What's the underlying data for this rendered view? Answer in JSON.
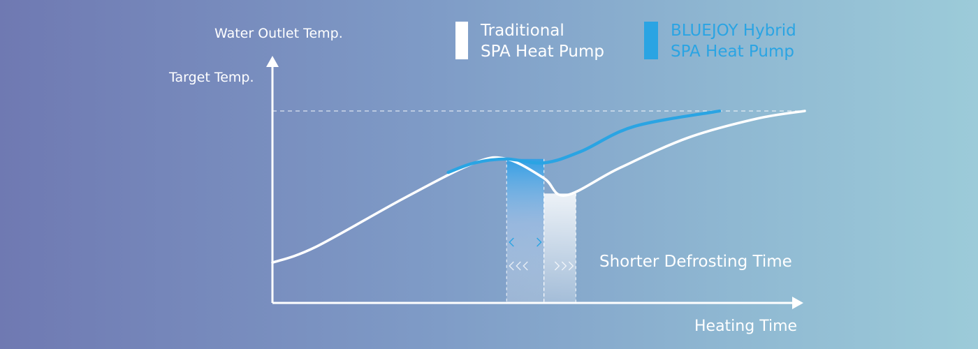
{
  "chart_data": {
    "type": "line",
    "xlabel": "Heating Time",
    "ylabel": "Water Outlet Temp.",
    "target_label": "Target Temp.",
    "target_value": 1.0,
    "xlim": [
      0,
      1
    ],
    "ylim": [
      0,
      1.13
    ],
    "grid": false,
    "legend_position": "top-center",
    "annotation": "Shorter Defrosting Time",
    "series": [
      {
        "name": "Traditional SPA Heat Pump",
        "name_lines": [
          "Traditional",
          "SPA Heat Pump"
        ],
        "color": "#ffffff",
        "x": [
          0,
          0.08,
          0.25,
          0.38,
          0.44,
          0.51,
          0.55,
          0.65,
          0.78,
          0.91,
          1.0
        ],
        "y": [
          0.21,
          0.29,
          0.55,
          0.73,
          0.75,
          0.65,
          0.56,
          0.7,
          0.86,
          0.96,
          1.0
        ]
      },
      {
        "name": "BLUEJOY Hybrid SPA Heat Pump",
        "name_lines": [
          "BLUEJOY Hybrid",
          "SPA Heat Pump"
        ],
        "color": "#2aa4e3",
        "x": [
          0.33,
          0.38,
          0.44,
          0.51,
          0.58,
          0.68,
          0.84
        ],
        "y": [
          0.68,
          0.73,
          0.75,
          0.73,
          0.79,
          0.92,
          1.0
        ]
      }
    ],
    "shaded_regions": [
      {
        "x": [
          0.44,
          0.51
        ],
        "color": "#5aaee6"
      },
      {
        "x": [
          0.51,
          0.57
        ],
        "color": "#e6eaf2"
      }
    ]
  }
}
